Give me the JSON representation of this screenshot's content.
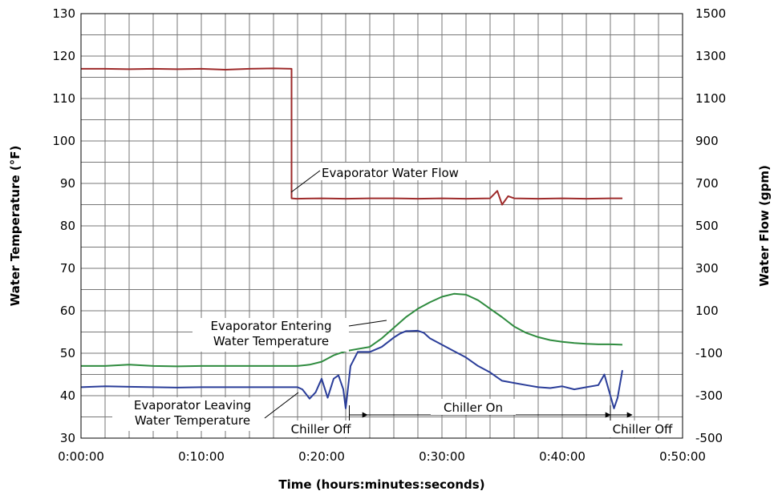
{
  "chart_data": {
    "type": "line",
    "xlabel": "Time (hours:minutes:seconds)",
    "ylabel_left": "Water Temperature (°F)",
    "ylabel_right": "Water Flow (gpm)",
    "x_unit": "minutes",
    "xlim": [
      0,
      50
    ],
    "x_ticks": [
      0,
      10,
      20,
      30,
      40,
      50
    ],
    "x_tick_labels": [
      "0:00:00",
      "0:10:00",
      "0:20:00",
      "0:30:00",
      "0:40:00",
      "0:50:00"
    ],
    "ylim_left": [
      30,
      130
    ],
    "y_left_ticks": [
      30,
      40,
      50,
      60,
      70,
      80,
      90,
      100,
      110,
      120,
      130
    ],
    "ylim_right": [
      -500,
      1500
    ],
    "y_right_ticks": [
      -500,
      -300,
      -100,
      100,
      300,
      500,
      700,
      900,
      1100,
      1300,
      1500
    ],
    "grid": true,
    "grid_colors": {
      "major": "#777777"
    },
    "series": [
      {
        "name": "Evaporator Water Flow",
        "axis": "right",
        "color": "#9e2a2a",
        "x": [
          0,
          2,
          4,
          6,
          8,
          10,
          12,
          14,
          16,
          17.5,
          17.5,
          17.9,
          20,
          22,
          24,
          26,
          28,
          30,
          32,
          34,
          34.6,
          35,
          35.5,
          36,
          38,
          40,
          42,
          44,
          45
        ],
        "y": [
          1240,
          1240,
          1238,
          1240,
          1238,
          1240,
          1236,
          1240,
          1242,
          1240,
          630,
          628,
          630,
          628,
          630,
          630,
          628,
          630,
          628,
          630,
          665,
          600,
          640,
          630,
          628,
          630,
          628,
          630,
          630
        ]
      },
      {
        "name": "Evaporator Entering Water Temperature",
        "axis": "left",
        "color": "#2e8b3e",
        "x": [
          0,
          2,
          4,
          6,
          8,
          10,
          12,
          14,
          16,
          18,
          19,
          20,
          21,
          22,
          23,
          24,
          25,
          26,
          27,
          28,
          29,
          30,
          31,
          32,
          33,
          34,
          35,
          36,
          37,
          38,
          39,
          40,
          41,
          42,
          43,
          44,
          45
        ],
        "y": [
          47,
          47,
          47.3,
          47,
          46.9,
          47,
          47,
          47,
          47,
          47,
          47.3,
          48,
          49.5,
          50.5,
          51,
          51.5,
          53.5,
          56,
          58.5,
          60.5,
          62,
          63.3,
          64,
          63.8,
          62.5,
          60.5,
          58.5,
          56.3,
          54.8,
          53.8,
          53.1,
          52.7,
          52.4,
          52.2,
          52.1,
          52.1,
          52
        ]
      },
      {
        "name": "Evaporator Leaving Water Temperature",
        "axis": "left",
        "color": "#2a3d99",
        "x": [
          0,
          2,
          4,
          6,
          8,
          10,
          12,
          14,
          16,
          17,
          18,
          18.4,
          19,
          19.5,
          20,
          20.5,
          21,
          21.4,
          21.8,
          22,
          22.4,
          23,
          24,
          25,
          26,
          26.5,
          27,
          28,
          28.5,
          29,
          30,
          31,
          32,
          33,
          34,
          35,
          36,
          37,
          38,
          39,
          40,
          41,
          42,
          43,
          43.5,
          44,
          44.3,
          44.6,
          45
        ],
        "y": [
          42,
          42.2,
          42.1,
          42,
          41.9,
          42,
          42,
          42,
          42,
          42,
          42,
          41.5,
          39.3,
          40.8,
          44,
          39.5,
          44,
          44.8,
          41.5,
          37,
          47,
          50.3,
          50.3,
          51.5,
          53.7,
          54.6,
          55.2,
          55.3,
          54.8,
          53.5,
          52,
          50.5,
          49,
          47,
          45.5,
          43.5,
          43,
          42.5,
          42,
          41.8,
          42.2,
          41.5,
          42,
          42.5,
          45,
          40,
          37,
          39.5,
          46
        ]
      }
    ],
    "annotations": [
      {
        "text": "Evaporator Water Flow",
        "target": "Evaporator Water Flow"
      },
      {
        "text": "Evaporator Entering\nWater Temperature",
        "target": "Evaporator Entering Water Temperature"
      },
      {
        "text": "Evaporator Leaving\nWater Temperature",
        "target": "Evaporator Leaving Water Temperature"
      },
      {
        "text": "Chiller Off",
        "x_start": 22.3,
        "x_end": 23.8
      },
      {
        "text": "Chiller On",
        "x_start": 23.8,
        "x_end": 44
      },
      {
        "text": "Chiller Off",
        "x_start": 44,
        "x_end": 45.8
      }
    ]
  }
}
